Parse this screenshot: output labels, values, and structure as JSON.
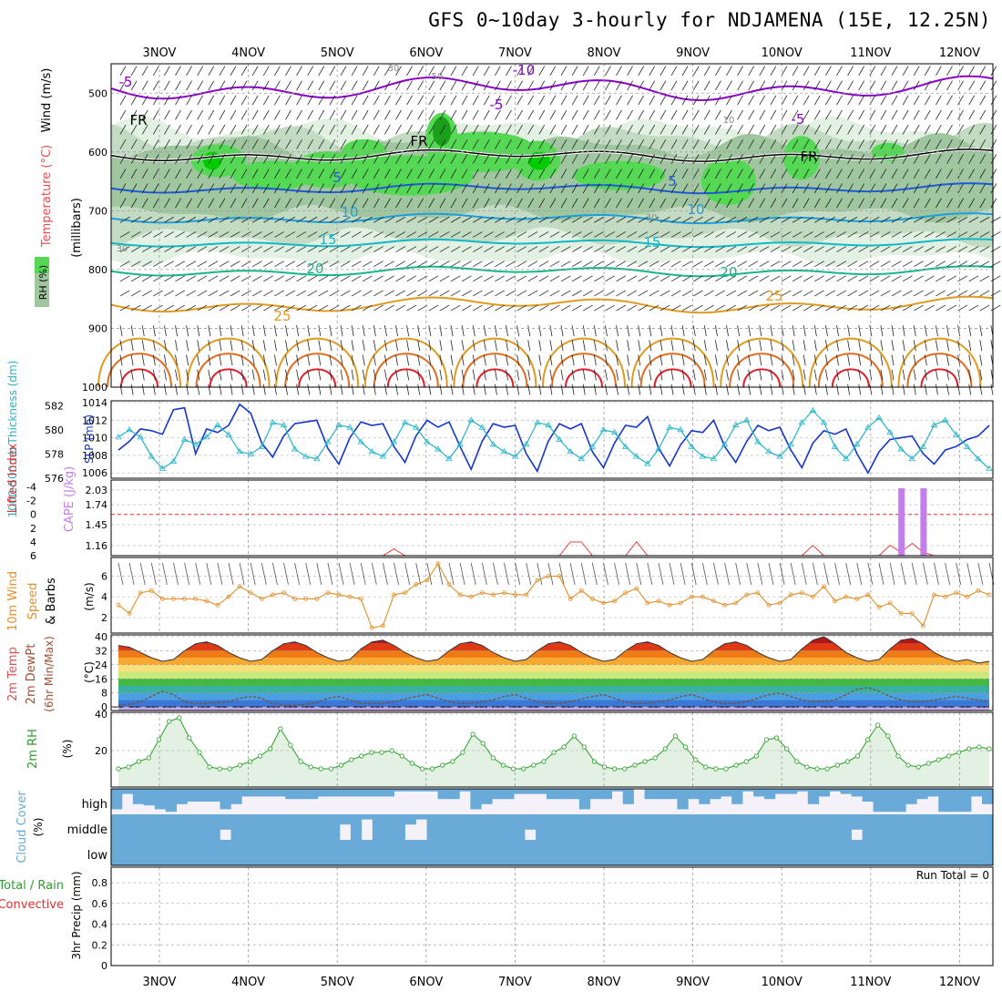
{
  "title": "GFS 0~10day 3-hourly for NDJAMENA (15E, 12.25N)",
  "colors": {
    "rh_light": "#e3f1e3",
    "rh_mid": "#c3dbc3",
    "rh_dark": "#9fc69f",
    "rh_bright": "#55d955",
    "rh_max": "#00cc00",
    "freezing": "#000000",
    "temp_minus5": "#8a00c8",
    "temp_5": "#1e5ad8",
    "temp_10": "#1a9ee0",
    "temp_15": "#12b8c8",
    "temp_20": "#17b58a",
    "temp_25": "#e09a1e",
    "temp_30": "#e06c1e",
    "temp_35": "#e0202a",
    "slp": "#1436c8",
    "thickness": "#22b4c8",
    "cape": "#c47ee8",
    "lifted": "#e03030",
    "wind10": "#e0902a",
    "dewpt": "#7a5030",
    "rh2m": "#2aa02a",
    "cloud": "#6aaad8",
    "cloud_bg": "#f4f2f8",
    "precip_total": "#2aa02a",
    "precip_conv": "#e03030"
  },
  "chart_data": [
    {
      "id": "upper_air",
      "type": "heatmap",
      "ylabel_wind": "Wind (m/s)",
      "ylabel_temp": "Temperature (°C)",
      "ylabel_rh": "RH (%)",
      "ylabel_press": "(millibars)",
      "y_ticks": [
        500,
        600,
        700,
        800,
        900,
        1000
      ],
      "ylim": [
        1000,
        450
      ],
      "x_ticks": [
        "3NOV",
        "4NOV",
        "5NOV",
        "6NOV",
        "7NOV",
        "8NOV",
        "9NOV",
        "10NOV",
        "11NOV",
        "12NOV"
      ],
      "labels": [
        {
          "text": "-5",
          "level": "minus5"
        },
        {
          "text": "-10",
          "level": "minus5"
        },
        {
          "text": "-5",
          "level": "minus5"
        },
        {
          "text": "-5",
          "level": "minus5"
        },
        {
          "text": "FR",
          "level": "freezing"
        },
        {
          "text": "FR",
          "level": "freezing"
        },
        {
          "text": "FR",
          "level": "freezing"
        },
        {
          "text": "5",
          "level": "5"
        },
        {
          "text": "5",
          "level": "5"
        },
        {
          "text": "10",
          "level": "10"
        },
        {
          "text": "10",
          "level": "10"
        },
        {
          "text": "15",
          "level": "15"
        },
        {
          "text": "15",
          "level": "15"
        },
        {
          "text": "20",
          "level": "20"
        },
        {
          "text": "20",
          "level": "20"
        },
        {
          "text": "25",
          "level": "25"
        },
        {
          "text": "25",
          "level": "25"
        },
        {
          "text": "30",
          "level": "rh"
        },
        {
          "text": "50",
          "level": "rh"
        },
        {
          "text": "10",
          "level": "rh"
        },
        {
          "text": "30",
          "level": "rh"
        },
        {
          "text": "30",
          "level": "rh"
        }
      ]
    },
    {
      "id": "slp_thickness",
      "type": "line",
      "ylabel_left": "1000-500mb Thickness (dm)",
      "ylabel_right": "SLP (mb)",
      "ticks_left": [
        576,
        578,
        580,
        582
      ],
      "ticks_right": [
        1006,
        1008,
        1010,
        1012,
        1014
      ],
      "ylim_slp": [
        1005.4,
        1014.2
      ],
      "ylim_thick": [
        576,
        582.4
      ],
      "series": [
        {
          "name": "SLP",
          "values": [
            1008.6,
            1009.6,
            1011.0,
            1010.8,
            1010.4,
            1013.2,
            1013.4,
            1008.2,
            1011.0,
            1010.6,
            1011.4,
            1013.8,
            1012.8,
            1009.4,
            1007.8,
            1010.2,
            1011.6,
            1011.8,
            1012.0,
            1008.8,
            1007.0,
            1010.0,
            1011.8,
            1011.4,
            1011.6,
            1009.0,
            1007.2,
            1010.2,
            1012.0,
            1011.2,
            1011.8,
            1009.0,
            1006.4,
            1009.6,
            1011.6,
            1011.2,
            1011.4,
            1008.2,
            1006.2,
            1009.6,
            1011.6,
            1011.0,
            1011.6,
            1008.4,
            1006.6,
            1009.4,
            1011.4,
            1011.2,
            1012.4,
            1008.8,
            1006.8,
            1009.2,
            1010.8,
            1010.6,
            1012.0,
            1009.0,
            1007.2,
            1009.6,
            1011.4,
            1010.8,
            1011.2,
            1008.6,
            1006.6,
            1009.4,
            1010.8,
            1010.4,
            1011.0,
            1008.2,
            1006.0,
            1008.4,
            1009.8,
            1010.0,
            1010.2,
            1008.2,
            1007.0,
            1008.6,
            1009.0,
            1009.8,
            1010.2,
            1011.4
          ]
        },
        {
          "name": "Thickness",
          "values": [
            579.4,
            580.0,
            579.4,
            577.8,
            576.8,
            577.4,
            579.2,
            578.8,
            579.4,
            580.4,
            579.6,
            578.2,
            578.0,
            578.6,
            580.6,
            580.4,
            578.4,
            577.8,
            577.6,
            579.0,
            580.4,
            580.2,
            579.0,
            578.2,
            577.8,
            579.0,
            580.6,
            580.2,
            579.0,
            578.4,
            577.6,
            578.8,
            580.8,
            580.2,
            578.8,
            578.2,
            577.8,
            578.8,
            580.6,
            580.4,
            579.2,
            578.2,
            577.6,
            578.6,
            580.0,
            579.8,
            578.6,
            577.8,
            577.2,
            578.4,
            580.2,
            580.0,
            578.6,
            577.8,
            577.6,
            578.8,
            580.4,
            580.8,
            579.0,
            578.2,
            577.8,
            578.8,
            580.6,
            581.6,
            580.6,
            578.6,
            577.6,
            578.8,
            580.2,
            581.0,
            579.8,
            578.4,
            577.6,
            578.6,
            580.4,
            580.8,
            579.6,
            578.6,
            577.6,
            576.8
          ]
        }
      ]
    },
    {
      "id": "cape_li",
      "type": "bar",
      "ylabel_left": "Lifted Index",
      "ylabel_right": "CAPE (J/kg)",
      "ticks_left": [
        "-4",
        "-2",
        "0",
        "2",
        "4",
        "6"
      ],
      "ticks_right": [
        "2.03",
        "1.74",
        "1.45",
        "1.16"
      ],
      "lifted_values": [
        6.0,
        6.0,
        6.0,
        6.0,
        6.0,
        6.0,
        6.0,
        6.0,
        6.0,
        6.0,
        6.0,
        6.0,
        6.0,
        6.0,
        6.0,
        6.0,
        6.0,
        6.0,
        6.0,
        6.0,
        6.0,
        6.0,
        6.0,
        6.0,
        6.0,
        5.0,
        6.0,
        6.0,
        6.0,
        6.0,
        6.0,
        6.0,
        6.0,
        6.0,
        6.0,
        6.0,
        6.0,
        6.0,
        6.0,
        6.0,
        6.0,
        4.0,
        4.0,
        6.0,
        6.0,
        6.0,
        6.0,
        4.0,
        6.0,
        6.0,
        6.0,
        6.0,
        6.0,
        6.0,
        6.0,
        6.0,
        6.0,
        6.0,
        6.0,
        6.0,
        6.0,
        6.0,
        6.0,
        4.5,
        6.0,
        6.0,
        6.0,
        6.0,
        6.0,
        6.0,
        4.5,
        5.5,
        4.2,
        5.5,
        6.0,
        6.0,
        6.0,
        6.0,
        6.0,
        6.0
      ],
      "cape_values": [
        0,
        0,
        0,
        0,
        0,
        0,
        0,
        0,
        0,
        0,
        0,
        0,
        0,
        0,
        0,
        0,
        0,
        0,
        0,
        0,
        0,
        0,
        0,
        0,
        0,
        0,
        0,
        0,
        0,
        0,
        0,
        0,
        0,
        0,
        0,
        0,
        0,
        0,
        0,
        0,
        0,
        0,
        0,
        0,
        0,
        0,
        0,
        0,
        0,
        0,
        0,
        0,
        0,
        0,
        0,
        0,
        0,
        0,
        0,
        0,
        0,
        0,
        0,
        0,
        0,
        0,
        0,
        0,
        0,
        0,
        0,
        2.03,
        0,
        2.03,
        0,
        0,
        0,
        0,
        0,
        0
      ]
    },
    {
      "id": "wind10m",
      "type": "line",
      "ylabel": "10m Wind Speed & Barbs",
      "yunits": "(m/s)",
      "ticks": [
        2,
        4,
        6
      ],
      "ylim": [
        0.5,
        7.8
      ],
      "values": [
        3.2,
        2.4,
        4.4,
        4.6,
        3.8,
        3.8,
        3.8,
        3.8,
        3.6,
        3.2,
        4.0,
        5.0,
        4.4,
        3.8,
        4.2,
        4.4,
        3.8,
        3.8,
        3.8,
        4.4,
        4.2,
        4.0,
        3.8,
        1.0,
        1.2,
        4.2,
        4.4,
        5.2,
        5.6,
        7.2,
        5.2,
        4.2,
        4.0,
        4.4,
        4.2,
        4.4,
        4.2,
        4.2,
        5.6,
        6.0,
        6.0,
        3.8,
        4.6,
        3.8,
        3.4,
        3.6,
        4.4,
        4.8,
        3.4,
        3.6,
        3.2,
        3.4,
        4.0,
        4.0,
        3.6,
        3.2,
        3.4,
        4.2,
        4.4,
        3.2,
        3.4,
        4.2,
        4.4,
        4.0,
        5.0,
        3.6,
        4.0,
        3.8,
        4.2,
        3.0,
        3.4,
        2.4,
        2.4,
        1.2,
        4.2,
        4.0,
        4.4,
        4.0,
        4.6,
        4.2
      ]
    },
    {
      "id": "temp2m",
      "type": "area",
      "ylabel_1": "2m Temp",
      "ylabel_2": "2m DewPt",
      "ylabel_3": "(6hr Min/Max)",
      "yunits": "(°C)",
      "ticks": [
        0,
        8,
        16,
        24,
        32,
        40
      ],
      "ylim": [
        -2,
        41
      ],
      "temp_values": [
        35,
        34,
        31,
        28,
        26,
        27,
        32,
        36,
        37,
        35,
        31,
        28,
        26,
        27,
        32,
        36,
        37,
        35,
        31,
        28,
        26,
        27,
        33,
        37,
        38,
        35,
        31,
        28,
        26,
        27,
        32,
        36,
        37,
        35,
        31,
        28,
        26,
        27,
        32,
        36,
        37,
        35,
        31,
        28,
        26,
        27,
        32,
        36,
        37,
        35,
        31,
        28,
        26,
        27,
        32,
        36,
        37,
        35,
        31,
        28,
        26,
        27,
        33,
        38,
        40,
        36,
        31,
        28,
        26,
        27,
        33,
        38,
        39,
        36,
        31,
        28,
        26,
        27,
        25,
        26
      ],
      "dewpt_values": [
        1,
        1.5,
        3,
        6,
        9,
        7,
        3,
        2,
        2,
        2.5,
        3,
        5,
        6,
        5,
        2,
        1,
        1,
        1.5,
        2.5,
        5,
        6,
        4,
        2,
        2,
        2,
        3,
        4.5,
        6,
        7,
        5,
        3,
        2,
        2,
        3,
        4,
        6,
        7,
        5,
        3,
        2,
        2,
        3,
        4.5,
        6,
        7,
        5,
        3,
        2,
        2,
        3,
        4,
        6,
        7,
        5,
        3,
        2,
        2,
        3,
        5,
        7,
        8,
        6,
        4,
        3,
        3,
        4,
        7,
        10,
        11,
        9,
        6,
        4,
        3,
        3,
        4,
        5,
        6,
        5,
        4,
        3.5
      ]
    },
    {
      "id": "rh2m",
      "type": "area",
      "ylabel": "2m RH",
      "yunits": "(%)",
      "ticks": [
        20,
        40
      ],
      "ylim": [
        0,
        41
      ],
      "values": [
        10,
        11,
        14,
        16,
        26,
        36,
        38,
        27,
        19,
        11,
        10,
        10,
        12,
        14,
        17,
        21,
        32,
        23,
        14,
        11,
        10,
        10,
        12,
        15,
        17,
        19,
        19,
        20,
        17,
        13,
        10,
        10,
        12,
        14,
        19,
        29,
        24,
        16,
        12,
        10,
        10,
        12,
        14,
        19,
        22,
        28,
        22,
        14,
        11,
        10,
        10,
        12,
        14,
        16,
        21,
        28,
        22,
        15,
        11,
        10,
        10,
        12,
        14,
        17,
        26,
        27,
        21,
        14,
        11,
        10,
        10,
        12,
        14,
        17,
        26,
        34,
        28,
        17,
        12,
        11,
        13,
        15,
        17,
        19,
        21,
        22,
        21
      ]
    },
    {
      "id": "cloud",
      "type": "heatmap",
      "ylabel": "Cloud Cover",
      "yunits": "(%)",
      "rows": [
        "high",
        "middle",
        "low"
      ],
      "high_values": [
        80,
        20,
        60,
        65,
        80,
        90,
        60,
        50,
        50,
        50,
        80,
        60,
        30,
        30,
        30,
        30,
        40,
        40,
        40,
        30,
        30,
        30,
        30,
        30,
        30,
        30,
        10,
        10,
        10,
        10,
        40,
        40,
        10,
        80,
        60,
        40,
        40,
        20,
        20,
        20,
        40,
        40,
        40,
        80,
        40,
        40,
        10,
        60,
        0,
        40,
        40,
        40,
        80,
        40,
        60,
        40,
        30,
        60,
        10,
        30,
        40,
        20,
        20,
        10,
        60,
        30,
        10,
        20,
        30,
        50,
        90,
        90,
        90,
        60,
        40,
        30,
        90,
        90,
        90,
        30,
        60
      ],
      "middle_values": [
        100,
        100,
        100,
        100,
        100,
        100,
        100,
        100,
        100,
        100,
        60,
        100,
        100,
        100,
        100,
        100,
        100,
        100,
        100,
        100,
        100,
        40,
        100,
        20,
        100,
        100,
        100,
        40,
        20,
        100,
        100,
        100,
        100,
        100,
        100,
        100,
        100,
        100,
        60,
        100,
        100,
        100,
        100,
        100,
        100,
        100,
        100,
        100,
        100,
        100,
        100,
        100,
        100,
        100,
        100,
        100,
        100,
        100,
        100,
        100,
        100,
        100,
        100,
        100,
        100,
        100,
        100,
        100,
        60,
        100,
        100,
        100,
        100,
        100,
        100,
        100,
        100,
        100,
        100,
        100,
        100
      ],
      "low_values": [
        100,
        100,
        100,
        100,
        100,
        100,
        100,
        100,
        100,
        100,
        100,
        100,
        100,
        100,
        100,
        100,
        100,
        100,
        100,
        100,
        100,
        100,
        100,
        100,
        100,
        100,
        100,
        100,
        100,
        100,
        100,
        100,
        100,
        100,
        100,
        100,
        100,
        100,
        100,
        100,
        100,
        100,
        100,
        100,
        100,
        100,
        100,
        100,
        100,
        100,
        100,
        100,
        100,
        100,
        100,
        100,
        100,
        100,
        100,
        100,
        100,
        100,
        100,
        100,
        100,
        100,
        100,
        100,
        100,
        100,
        100,
        100,
        100,
        100,
        100,
        100,
        100,
        100,
        100,
        100,
        100
      ]
    },
    {
      "id": "precip",
      "type": "bar",
      "ylabel_total": "Total / Rain",
      "ylabel_conv": "Convective",
      "ylabel": "3hr Precip (mm)",
      "ticks": [
        "0",
        "0.2",
        "0.4",
        "0.6",
        "0.8"
      ],
      "ylim": [
        0,
        0.95
      ],
      "run_total": "Run Total = 0",
      "values": []
    }
  ]
}
